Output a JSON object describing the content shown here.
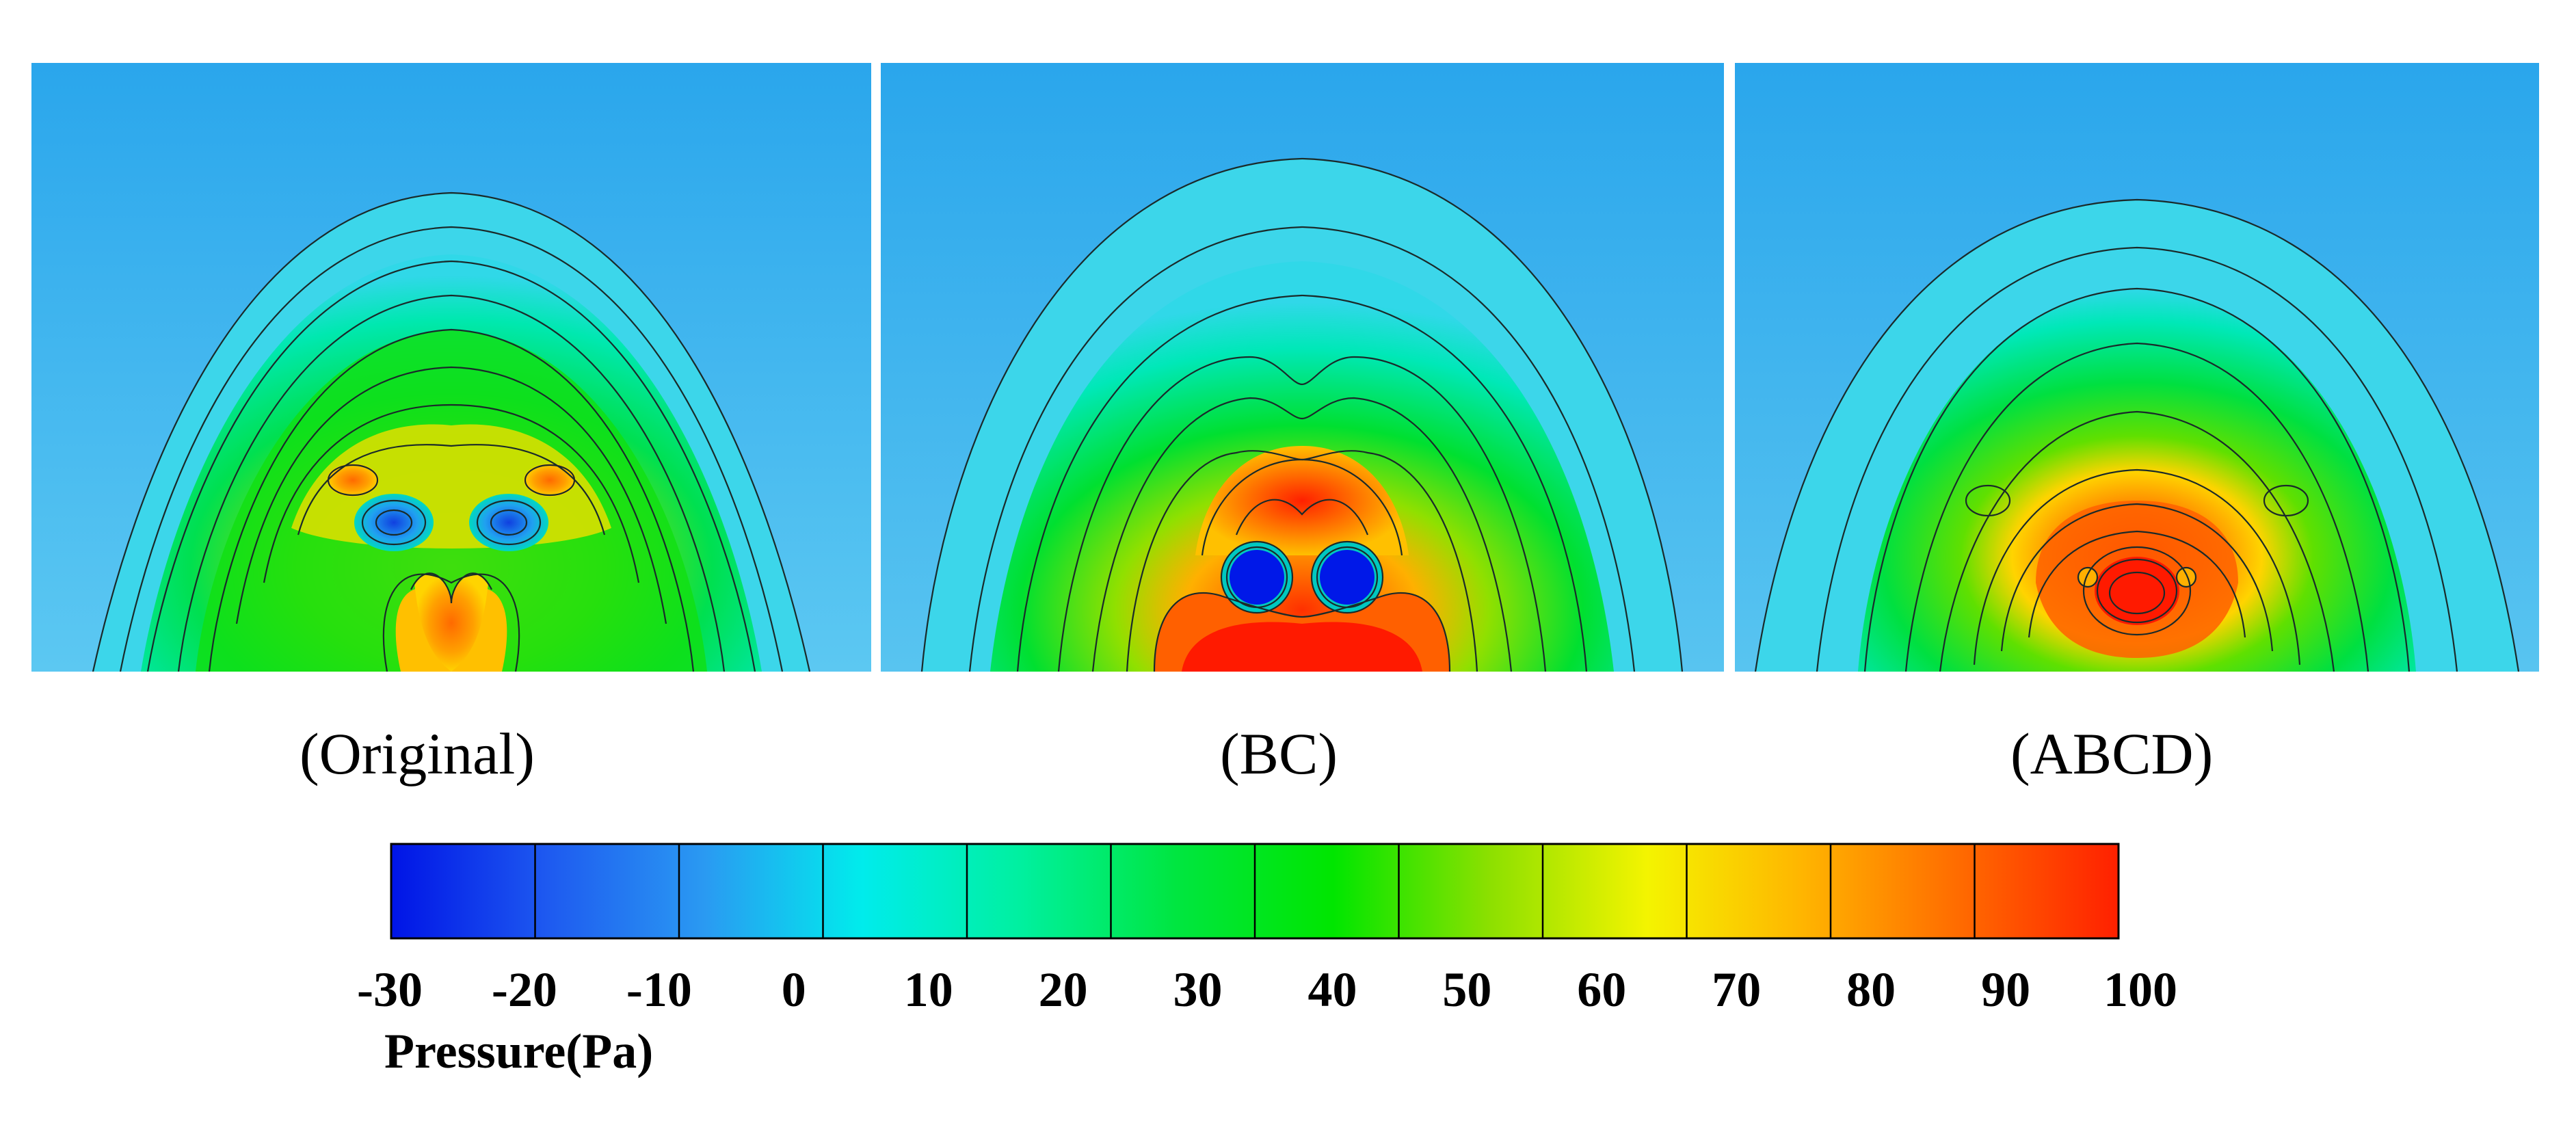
{
  "panels": [
    {
      "id": "original",
      "label": "(Original)"
    },
    {
      "id": "bc",
      "label": "(BC)"
    },
    {
      "id": "abcd",
      "label": "(ABCD)"
    }
  ],
  "colorbar": {
    "title": "Pressure(Pa)",
    "unit": "Pa",
    "ticks": [
      "-30",
      "-20",
      "-10",
      "0",
      "10",
      "20",
      "30",
      "40",
      "50",
      "60",
      "70",
      "80",
      "90",
      "100"
    ],
    "min": -30,
    "max": 100,
    "colors": [
      "#0014e6",
      "#1e5af0",
      "#2a9af2",
      "#00ecec",
      "#00f0a0",
      "#00e640",
      "#00e600",
      "#8de000",
      "#f4f400",
      "#ffb400",
      "#ff6a00",
      "#ff2000"
    ]
  }
}
